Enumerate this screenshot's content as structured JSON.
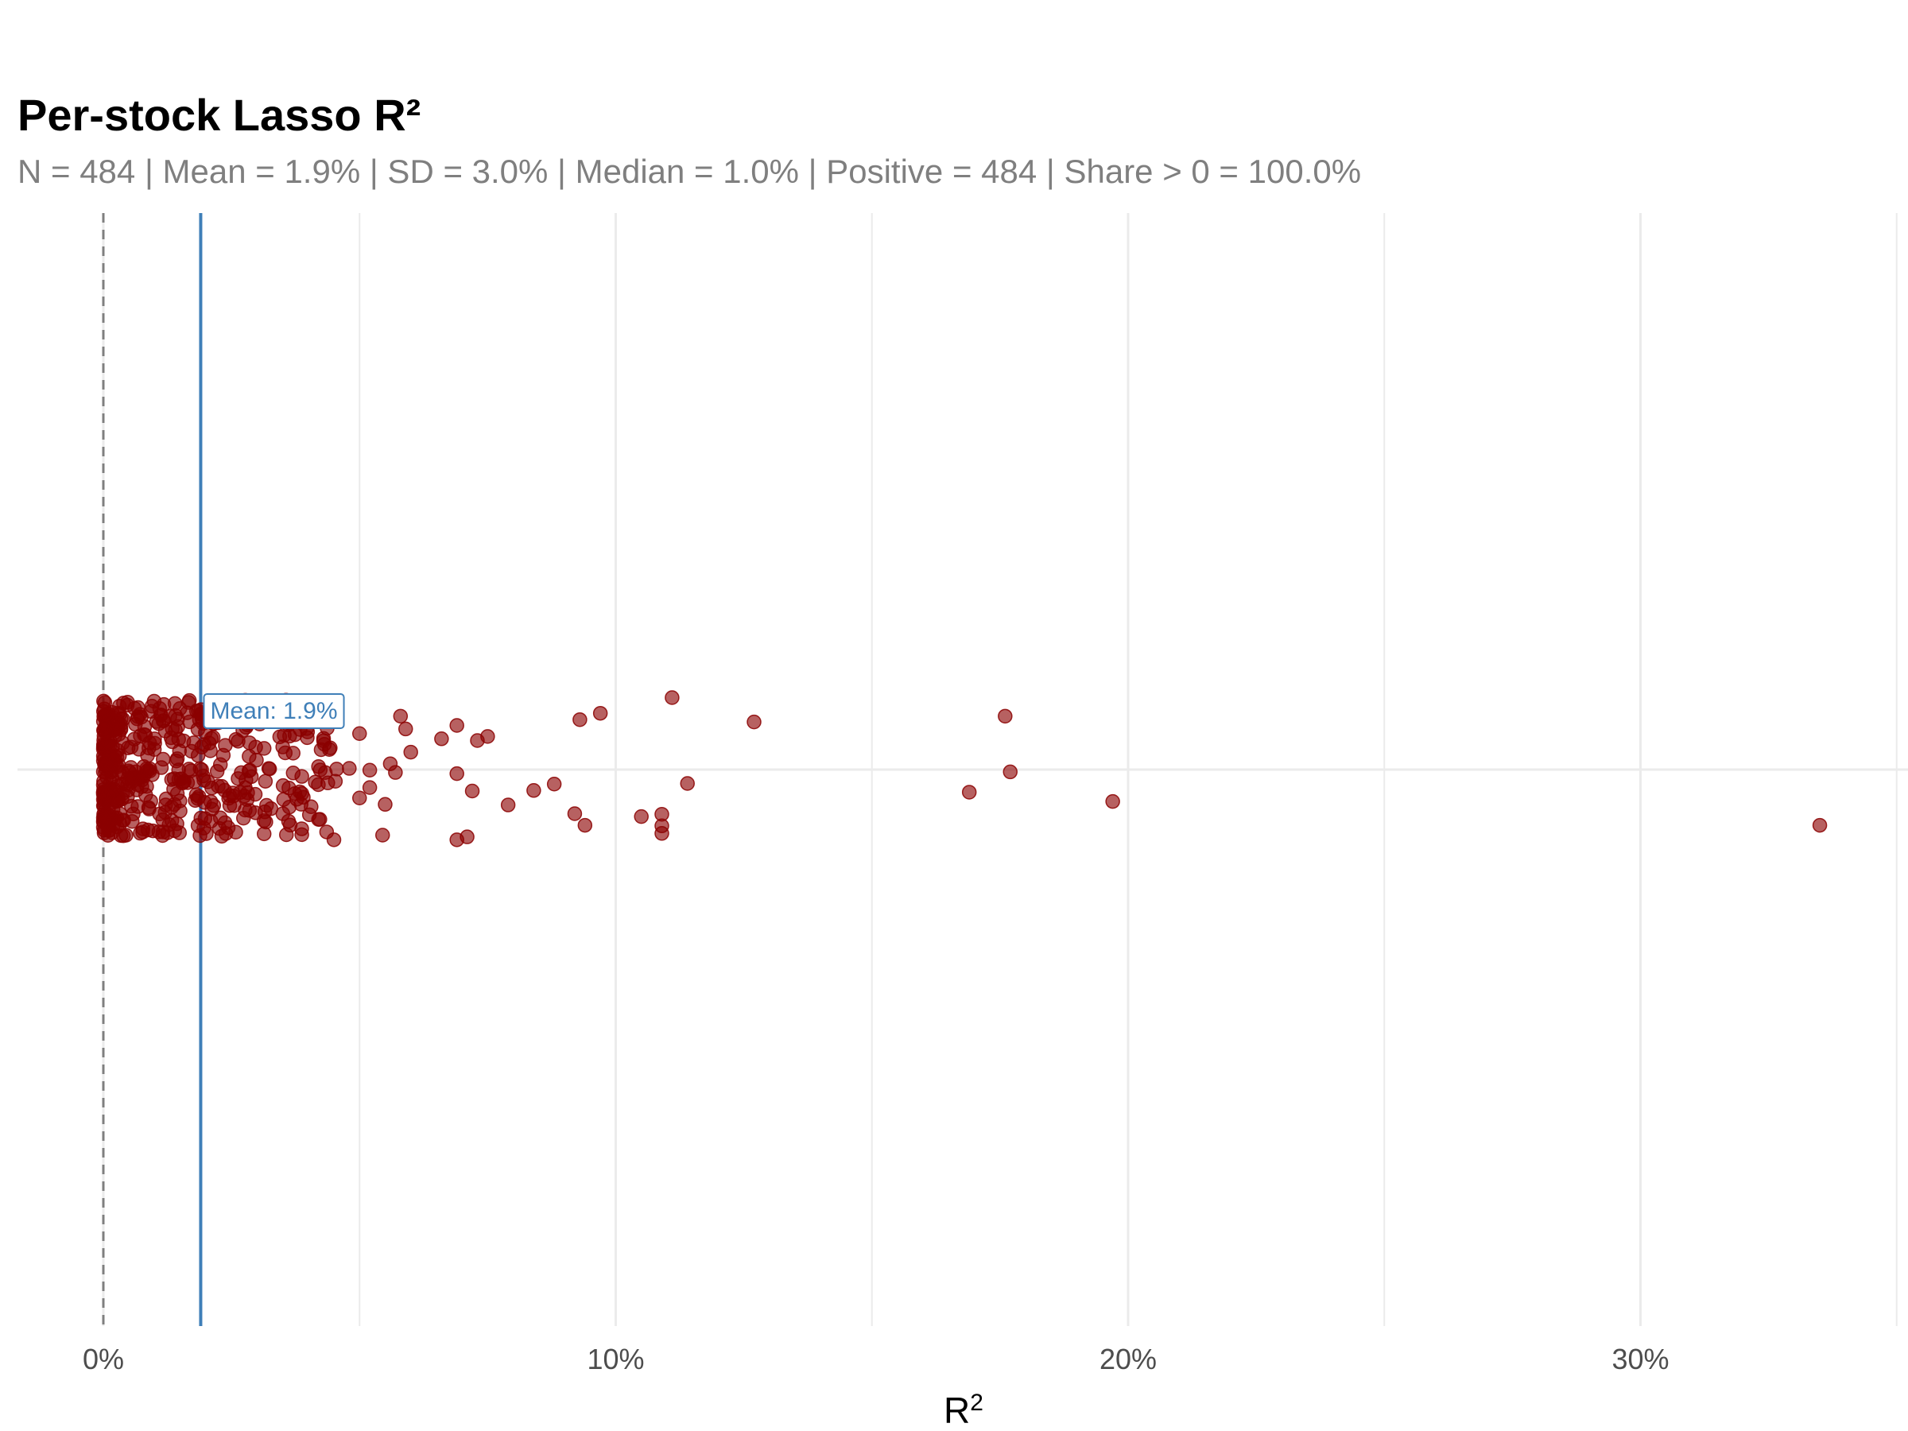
{
  "chart_data": {
    "type": "scatter",
    "title": "Per-stock Lasso R²",
    "subtitle": "N = 484 | Mean = 1.9% | SD = 3.0% | Median = 1.0% | Positive = 484 | Share > 0 = 100.0%",
    "xlabel": "R",
    "xlabel_superscript": "2",
    "ylabel": "",
    "x_ticks": [
      0,
      10,
      20,
      30
    ],
    "x_tick_labels": [
      "0%",
      "10%",
      "20%",
      "30%"
    ],
    "xlim": [
      -1.7,
      35
    ],
    "grid": true,
    "reference_lines": [
      {
        "value": 0,
        "style": "dashed",
        "color": "#7f7f7f"
      },
      {
        "value": 1.9,
        "style": "solid",
        "color": "#3f7fb8"
      }
    ],
    "mean_annotation": {
      "text": "Mean: 1.9%",
      "value": 1.9
    },
    "point_color": "#8b0000",
    "outliers": [
      {
        "x": 11.1,
        "y": 1.24
      },
      {
        "x": 9.7,
        "y": 0.97
      },
      {
        "x": 9.3,
        "y": 0.86
      },
      {
        "x": 12.7,
        "y": 0.82
      },
      {
        "x": 17.6,
        "y": 0.92
      },
      {
        "x": 17.7,
        "y": -0.04
      },
      {
        "x": 16.9,
        "y": -0.39
      },
      {
        "x": 19.7,
        "y": -0.55
      },
      {
        "x": 33.5,
        "y": -0.96
      },
      {
        "x": 11.4,
        "y": -0.24
      },
      {
        "x": 8.8,
        "y": -0.25
      },
      {
        "x": 8.4,
        "y": -0.36
      },
      {
        "x": 7.9,
        "y": -0.61
      },
      {
        "x": 7.2,
        "y": -0.37
      },
      {
        "x": 6.9,
        "y": -0.07
      },
      {
        "x": 9.2,
        "y": -0.76
      },
      {
        "x": 9.4,
        "y": -0.96
      },
      {
        "x": 10.5,
        "y": -0.81
      },
      {
        "x": 10.9,
        "y": -0.77
      },
      {
        "x": 10.9,
        "y": -0.97
      },
      {
        "x": 10.9,
        "y": -1.1
      },
      {
        "x": 6.9,
        "y": 0.76
      },
      {
        "x": 7.3,
        "y": 0.5
      },
      {
        "x": 7.5,
        "y": 0.57
      },
      {
        "x": 6.6,
        "y": 0.53
      },
      {
        "x": 5.8,
        "y": 0.92
      },
      {
        "x": 5.9,
        "y": 0.7
      },
      {
        "x": 6.0,
        "y": 0.3
      },
      {
        "x": 5.6,
        "y": 0.1
      },
      {
        "x": 5.7,
        "y": -0.05
      },
      {
        "x": 5.5,
        "y": -0.6
      },
      {
        "x": 5.2,
        "y": -0.31
      },
      {
        "x": 5.0,
        "y": -0.49
      },
      {
        "x": 5.45,
        "y": -1.13
      },
      {
        "x": 6.9,
        "y": -1.21
      },
      {
        "x": 7.1,
        "y": -1.16
      },
      {
        "x": 5.0,
        "y": 0.62
      },
      {
        "x": 4.8,
        "y": 0.02
      },
      {
        "x": 5.2,
        "y": -0.01
      },
      {
        "x": 4.5,
        "y": -1.21
      }
    ],
    "cluster": {
      "n": 444,
      "x_min": 0.0,
      "x_max": 4.6,
      "y_min": -1.15,
      "y_max": 1.2
    }
  }
}
